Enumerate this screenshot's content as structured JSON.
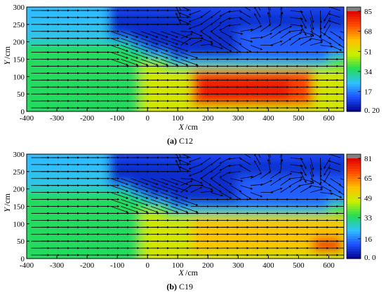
{
  "chart_data": [
    {
      "type": "heatmap",
      "panel_label": "(a)",
      "panel_name": "C12",
      "xlabel": "X",
      "xunit": "/cm",
      "ylabel": "Y",
      "yunit": "/cm",
      "xlim": [
        -400,
        650
      ],
      "ylim": [
        0,
        300
      ],
      "x_ticks": [
        -400,
        -300,
        -200,
        -100,
        0,
        100,
        200,
        300,
        400,
        500,
        600
      ],
      "y_ticks": [
        0,
        50,
        100,
        150,
        200,
        250,
        300
      ],
      "colorbar": {
        "ticks": [
          "85",
          "68",
          "51",
          "34",
          "17",
          "0. 20"
        ],
        "tick_values": [
          85,
          68,
          51,
          34,
          17,
          0.2
        ],
        "range": [
          0.2,
          85
        ]
      },
      "vector_field": "uniform rightward flow upstream; deflection downward near x=0–100 at y=150–230; recirculation in upper region x>100",
      "high_zone": {
        "x": [
          150,
          550
        ],
        "y": [
          10,
          120
        ],
        "peak": 85
      }
    },
    {
      "type": "heatmap",
      "panel_label": "(b)",
      "panel_name": "C19",
      "xlabel": "X",
      "xunit": "/cm",
      "ylabel": "Y",
      "yunit": "/cm",
      "xlim": [
        -400,
        650
      ],
      "ylim": [
        0,
        300
      ],
      "x_ticks": [
        -400,
        -300,
        -200,
        -100,
        0,
        100,
        200,
        300,
        400,
        500,
        600
      ],
      "y_ticks": [
        0,
        50,
        100,
        150,
        200,
        250,
        300
      ],
      "colorbar": {
        "ticks": [
          "81",
          "65",
          "49",
          "33",
          "16",
          "0. 0"
        ],
        "tick_values": [
          81,
          65,
          49,
          33,
          16,
          0.0
        ],
        "range": [
          0.0,
          81
        ]
      },
      "vector_field": "uniform rightward flow upstream; deflection downward near x=0–100 at y=150–230; recirculation in upper region x>100",
      "high_zone": {
        "x": [
          150,
          650
        ],
        "y": [
          10,
          120
        ],
        "peak": 81
      }
    }
  ],
  "colors": {
    "c0": "#00008b",
    "c1": "#1e50ff",
    "c2": "#30c0ff",
    "c3": "#22dd55",
    "c4": "#c8f000",
    "c5": "#ffc000",
    "c6": "#ff5000",
    "c7": "#e00000",
    "over": "#808080"
  }
}
